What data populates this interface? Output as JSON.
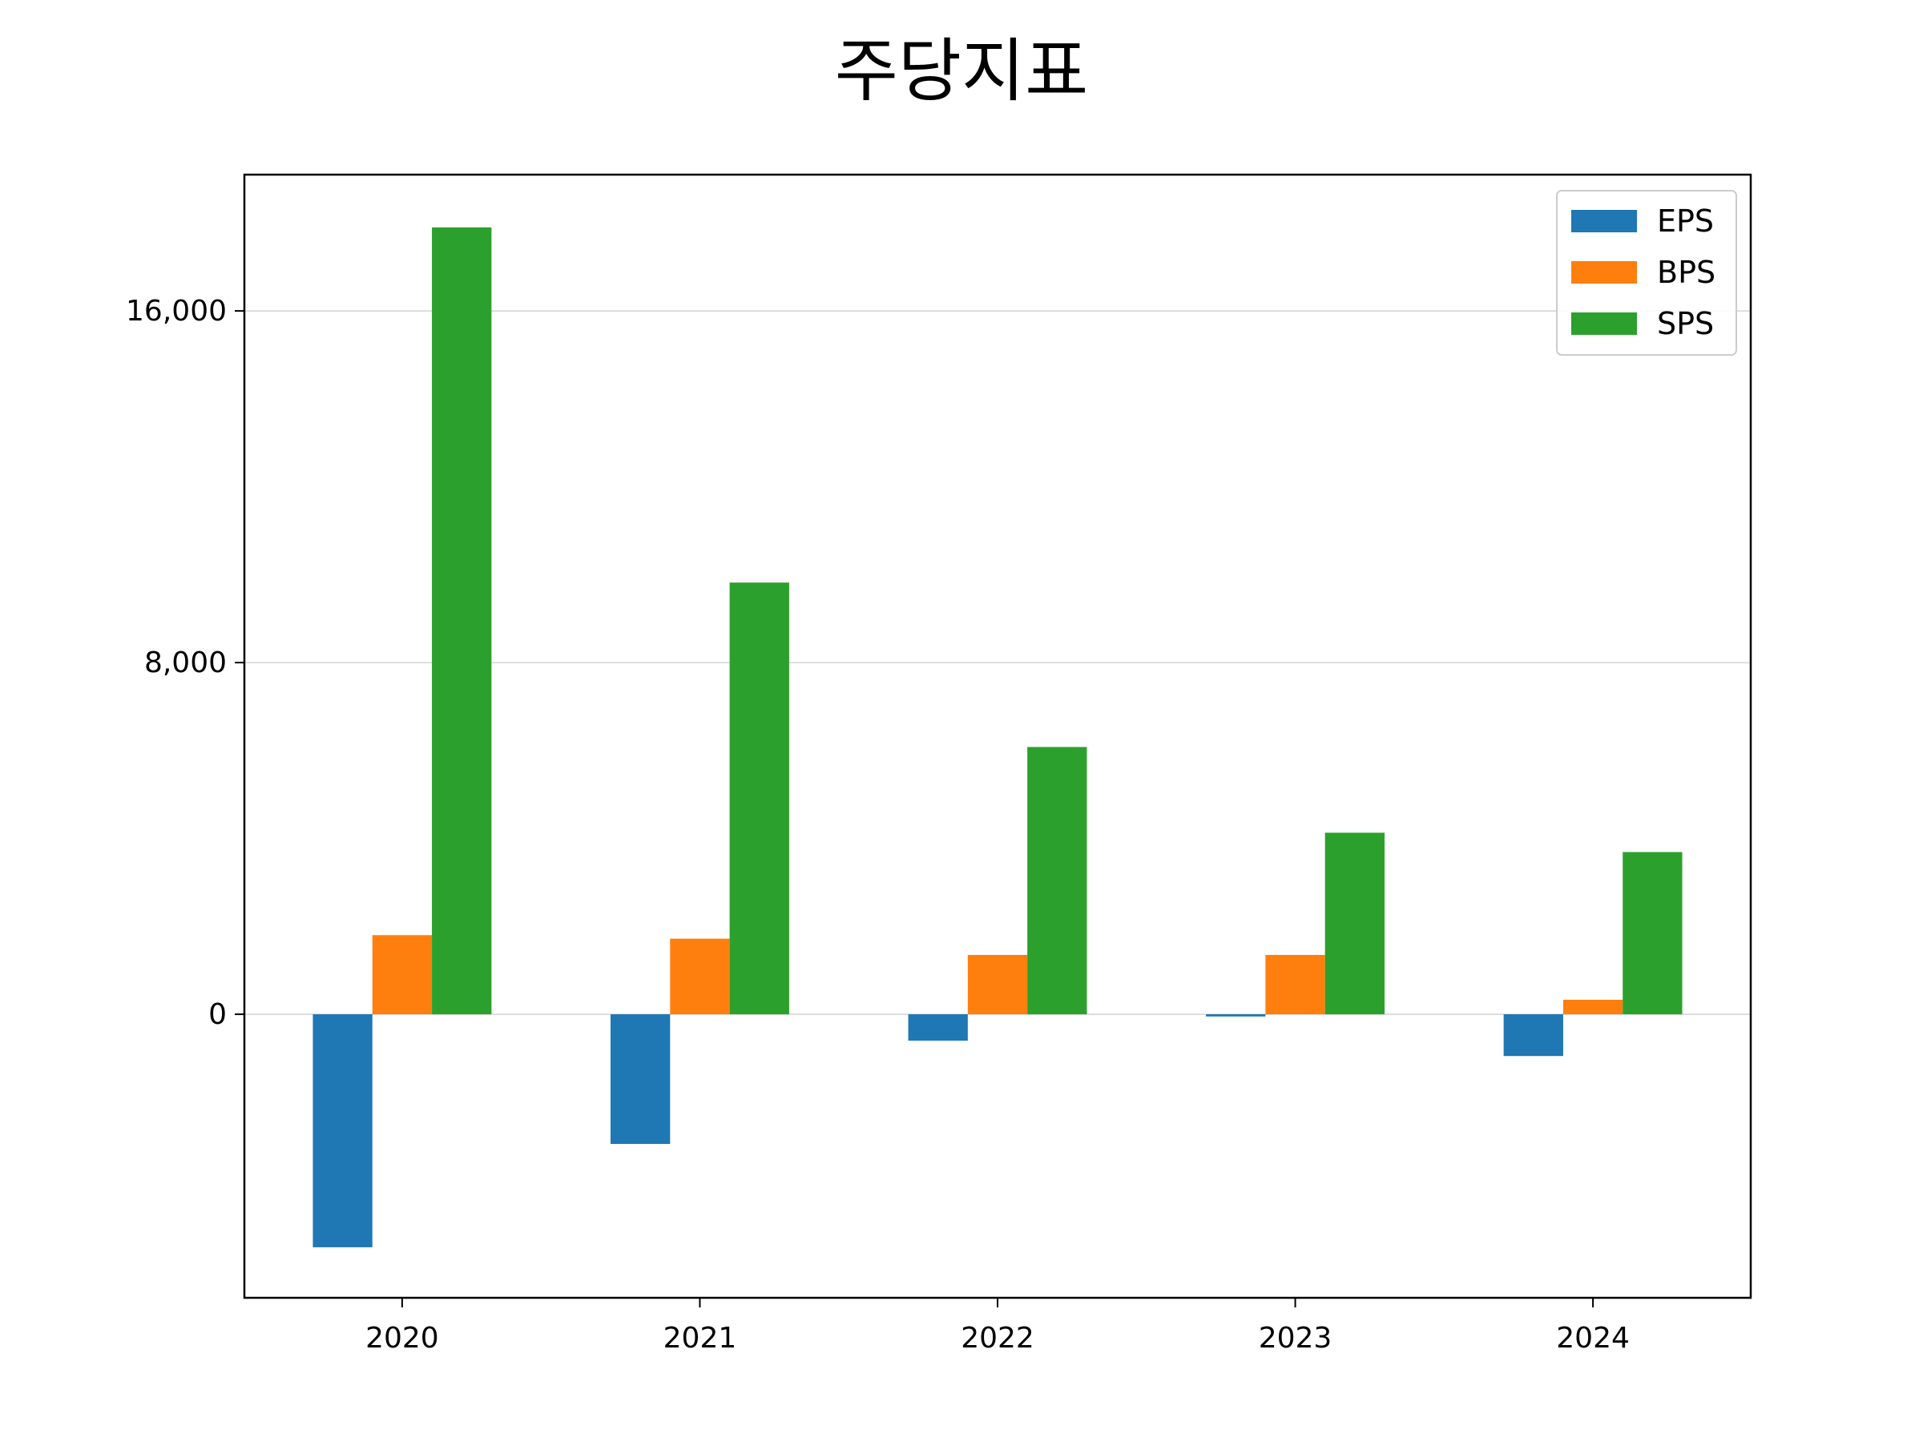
{
  "chart_data": {
    "type": "bar",
    "title": "주당지표",
    "categories": [
      "2020",
      "2021",
      "2022",
      "2023",
      "2024"
    ],
    "series": [
      {
        "name": "EPS",
        "color": "#1f77b4",
        "values": [
          -5300,
          -2950,
          -600,
          -50,
          -950
        ]
      },
      {
        "name": "BPS",
        "color": "#ff7f0e",
        "values": [
          1800,
          1720,
          1350,
          1350,
          330
        ]
      },
      {
        "name": "SPS",
        "color": "#2ca02c",
        "values": [
          17900,
          9820,
          6080,
          4130,
          3690
        ]
      }
    ],
    "yticks": [
      0,
      8000,
      16000
    ],
    "ytick_labels": [
      "0",
      "8,000",
      "16,000"
    ],
    "ylim": [
      -6450,
      19100
    ],
    "grid": "y",
    "legend": "top-right",
    "xlabel": "",
    "ylabel": ""
  }
}
